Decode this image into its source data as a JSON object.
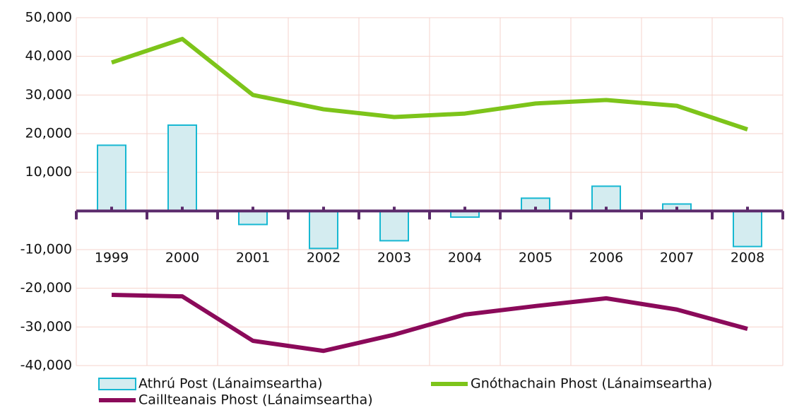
{
  "chart_data": {
    "type": "bar",
    "categories": [
      "1999",
      "2000",
      "2001",
      "2002",
      "2003",
      "2004",
      "2005",
      "2006",
      "2007",
      "2008"
    ],
    "series": [
      {
        "name": "Athrú Post (Lánaimseartha)",
        "type": "bar",
        "color": "#17b8d2",
        "fill": "#d4ecf0",
        "values": [
          17000,
          22200,
          -3500,
          -9700,
          -7700,
          -1600,
          3300,
          6400,
          1800,
          -9200
        ]
      },
      {
        "name": "Gnóthachain Phost (Lánaimseartha)",
        "type": "line",
        "color": "#7dc41a",
        "values": [
          38400,
          44500,
          30000,
          26300,
          24300,
          25200,
          27800,
          28700,
          27200,
          21100
        ]
      },
      {
        "name": "Caillteanais Phost (Lánaimseartha)",
        "type": "line",
        "color": "#8b0a5a",
        "values": [
          -21700,
          -22100,
          -33600,
          -36200,
          -32000,
          -26800,
          -24600,
          -22600,
          -25500,
          -30500
        ]
      }
    ],
    "ylim": [
      -40000,
      50000
    ],
    "yticks": [
      {
        "value": -40000,
        "label": "-40,000"
      },
      {
        "value": -30000,
        "label": "-30,000"
      },
      {
        "value": -20000,
        "label": "-20,000"
      },
      {
        "value": -10000,
        "label": "-10,000"
      },
      {
        "value": 10000,
        "label": "10,000"
      },
      {
        "value": 20000,
        "label": "20,000"
      },
      {
        "value": 30000,
        "label": "30,000"
      },
      {
        "value": 40000,
        "label": "40,000"
      },
      {
        "value": 50000,
        "label": "50,000"
      }
    ],
    "grid": true,
    "legend": "bottom"
  }
}
